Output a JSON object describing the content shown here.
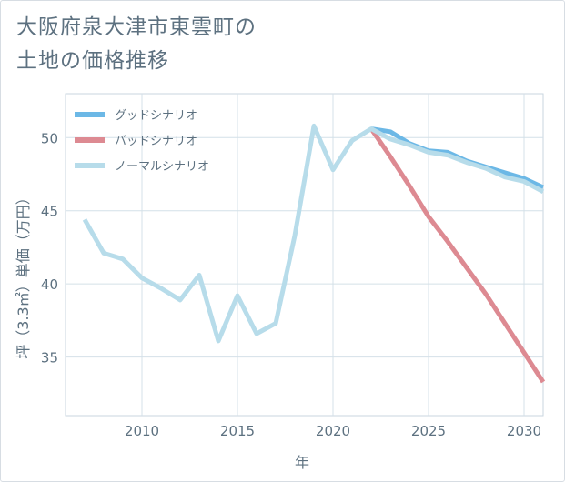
{
  "title": "大阪府泉大津市東雲町の\n土地の価格推移",
  "chart_data": {
    "type": "line",
    "xlabel": "年",
    "ylabel": "坪（3.3㎡）単価（万円）",
    "xlim": [
      2006,
      2031
    ],
    "ylim": [
      31,
      53
    ],
    "xticks": [
      2010,
      2015,
      2020,
      2025,
      2030
    ],
    "yticks": [
      35,
      40,
      45,
      50
    ],
    "grid": true,
    "legend_position": "top-left",
    "series": [
      {
        "name": "グッドシナリオ",
        "color": "#6cb8e6",
        "x": [
          2022,
          2023,
          2024,
          2025,
          2026,
          2027,
          2028,
          2029,
          2030,
          2031
        ],
        "values": [
          50.6,
          50.4,
          49.6,
          49.1,
          49.0,
          48.4,
          48.0,
          47.6,
          47.2,
          46.6
        ]
      },
      {
        "name": "バッドシナリオ",
        "color": "#dd8a92",
        "x": [
          2022,
          2023,
          2024,
          2025,
          2026,
          2027,
          2028,
          2029,
          2030,
          2031
        ],
        "values": [
          50.6,
          48.7,
          46.7,
          44.6,
          42.9,
          41.1,
          39.3,
          37.3,
          35.3,
          33.3
        ]
      },
      {
        "name": "ノーマルシナリオ",
        "color": "#b7dcea",
        "x": [
          2007,
          2008,
          2009,
          2010,
          2011,
          2012,
          2013,
          2014,
          2015,
          2016,
          2017,
          2018,
          2019,
          2020,
          2021,
          2022,
          2023,
          2024,
          2025,
          2026,
          2027,
          2028,
          2029,
          2030,
          2031
        ],
        "values": [
          44.4,
          42.1,
          41.7,
          40.4,
          39.7,
          38.9,
          40.6,
          36.1,
          39.2,
          36.6,
          37.3,
          43.3,
          50.8,
          47.8,
          49.8,
          50.6,
          49.9,
          49.5,
          49.0,
          48.8,
          48.3,
          47.9,
          47.3,
          47.0,
          46.3
        ]
      }
    ]
  }
}
